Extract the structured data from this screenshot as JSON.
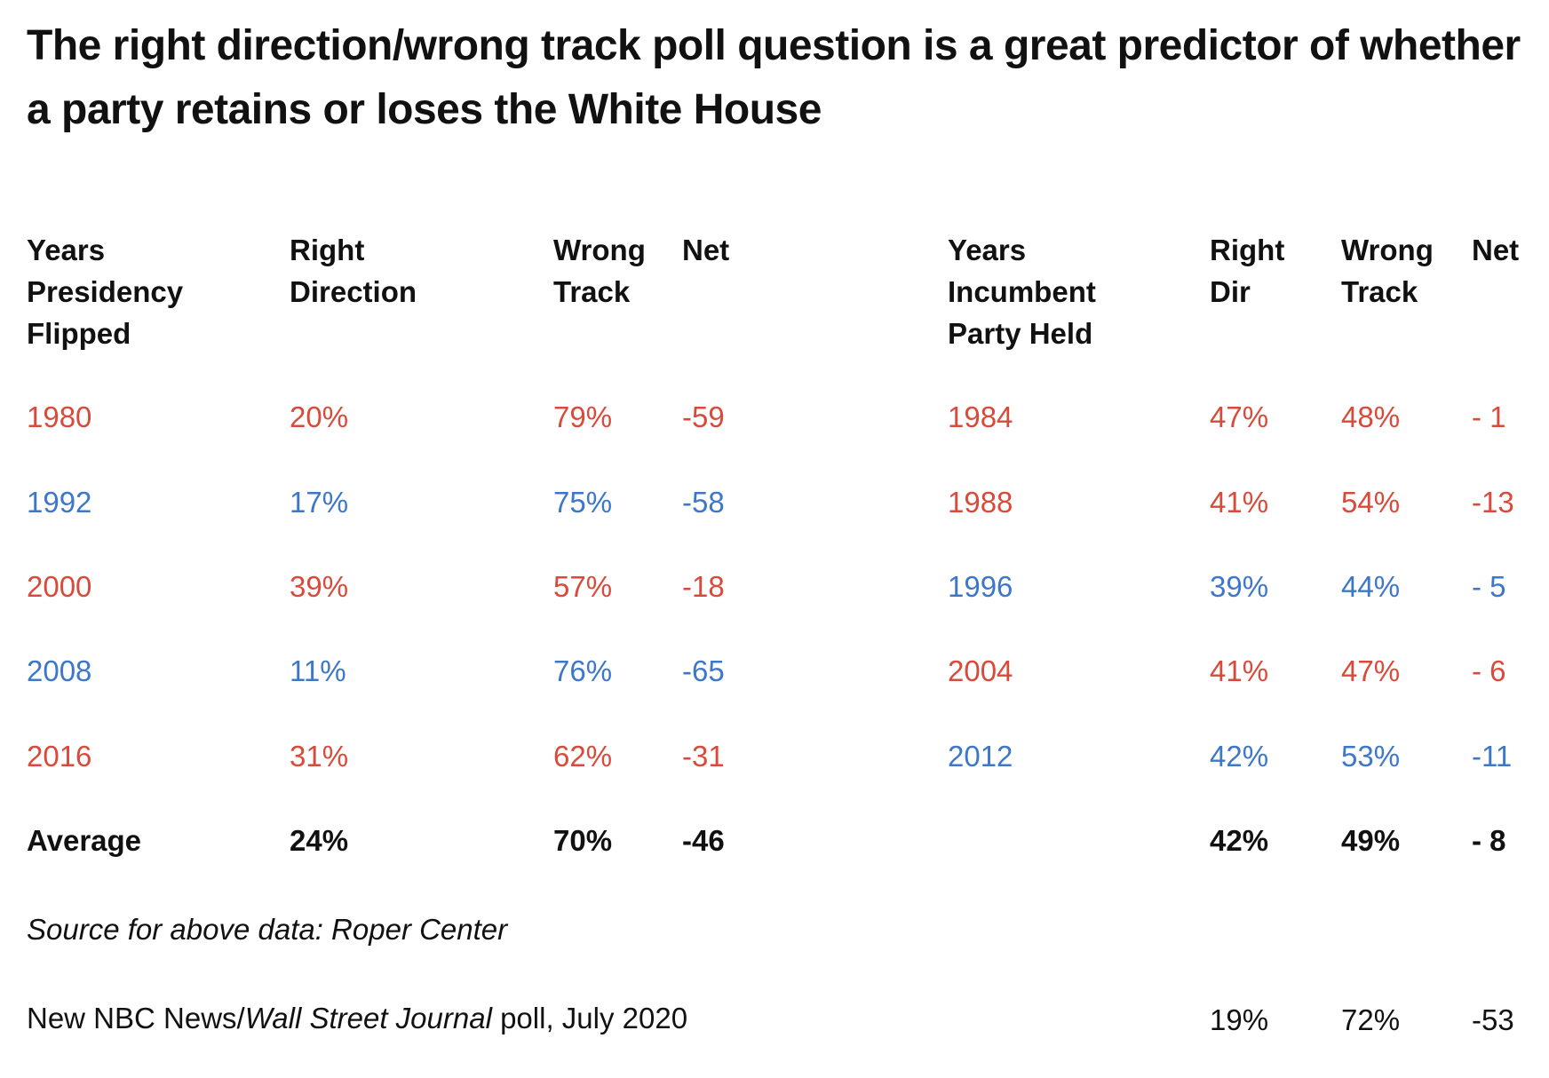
{
  "title": "The right direction/wrong track poll question is a great predictor of whether a party retains or loses the White House",
  "colors": {
    "rep": "#d94a3a",
    "dem": "#3d77c9",
    "avg": "#111111"
  },
  "chart_data": [
    {
      "type": "table",
      "columns": [
        [
          "Years",
          "Presidency",
          "Flipped"
        ],
        [
          "Right",
          "Direction"
        ],
        [
          "Wrong",
          "Track"
        ],
        [
          "Net"
        ]
      ],
      "rows": [
        {
          "party": "rep",
          "cells": [
            "1980",
            "20%",
            "79%",
            "-59"
          ]
        },
        {
          "party": "dem",
          "cells": [
            "1992",
            "17%",
            "75%",
            "-58"
          ]
        },
        {
          "party": "rep",
          "cells": [
            "2000",
            "39%",
            "57%",
            "-18"
          ]
        },
        {
          "party": "dem",
          "cells": [
            "2008",
            "11%",
            "76%",
            "-65"
          ]
        },
        {
          "party": "rep",
          "cells": [
            "2016",
            "31%",
            "62%",
            "-31"
          ]
        }
      ],
      "average": [
        "Average",
        "24%",
        "70%",
        "-46"
      ]
    },
    {
      "type": "table",
      "columns": [
        [
          "Years",
          "Incumbent",
          "Party Held"
        ],
        [
          "Right",
          "Dir"
        ],
        [
          "Wrong",
          "Track"
        ],
        [
          "Net"
        ]
      ],
      "rows": [
        {
          "party": "rep",
          "cells": [
            "1984",
            "47%",
            "48%",
            "- 1"
          ]
        },
        {
          "party": "rep",
          "cells": [
            "1988",
            "41%",
            "54%",
            "-13"
          ]
        },
        {
          "party": "dem",
          "cells": [
            "1996",
            "39%",
            "44%",
            "- 5"
          ]
        },
        {
          "party": "rep",
          "cells": [
            "2004",
            "41%",
            "47%",
            "- 6"
          ]
        },
        {
          "party": "dem",
          "cells": [
            "2012",
            "42%",
            "53%",
            "-11"
          ]
        }
      ],
      "average": [
        "",
        "42%",
        "49%",
        "- 8"
      ]
    }
  ],
  "source": "Source for above data: Roper Center",
  "nbc": {
    "prefix": "New NBC News/",
    "journal": "Wall Street Journal",
    "suffix": " poll, July 2020",
    "values": [
      "19%",
      "72%",
      "-53"
    ]
  }
}
